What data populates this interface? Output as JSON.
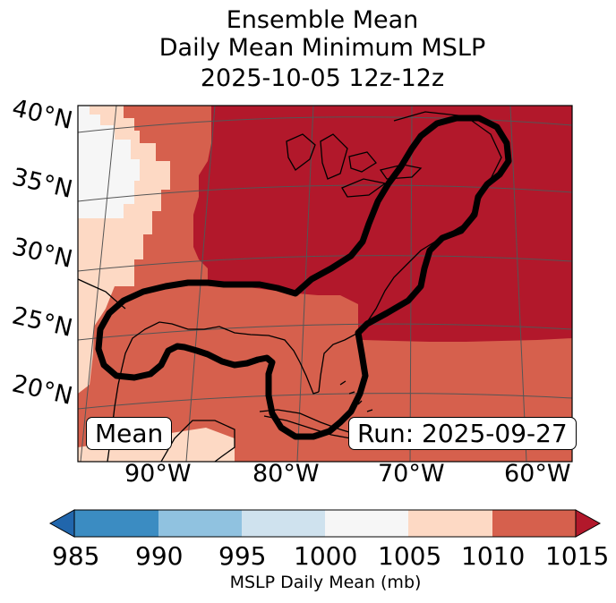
{
  "title": {
    "line1": "Ensemble Mean",
    "line2": "Daily Mean Minimum MSLP",
    "line3": "2025-10-05 12z-12z"
  },
  "map": {
    "lat_labels": [
      "40°N",
      "35°N",
      "30°N",
      "25°N",
      "20°N"
    ],
    "lon_labels": [
      "90°W",
      "80°W",
      "70°W",
      "60°W"
    ],
    "panel_left_label": "Mean",
    "panel_right_label": "Run: 2025-09-27",
    "colors": {
      "c985_990": "#3b8cc2",
      "c990_995": "#90c2e0",
      "c995_1000": "#cfe2ee",
      "c1000_1005": "#f6f6f6",
      "c1005_1010": "#fdd9c4",
      "c1010_1015": "#d6604d",
      "c_over_1015": "#b2182b",
      "c_under_985": "#2166ac",
      "contour": "#000000",
      "grid": "#555555",
      "coast": "#000000"
    }
  },
  "colorbar": {
    "ticks": [
      "985",
      "990",
      "995",
      "1000",
      "1005",
      "1010",
      "1015"
    ],
    "label": "MSLP Daily Mean (mb)"
  }
}
